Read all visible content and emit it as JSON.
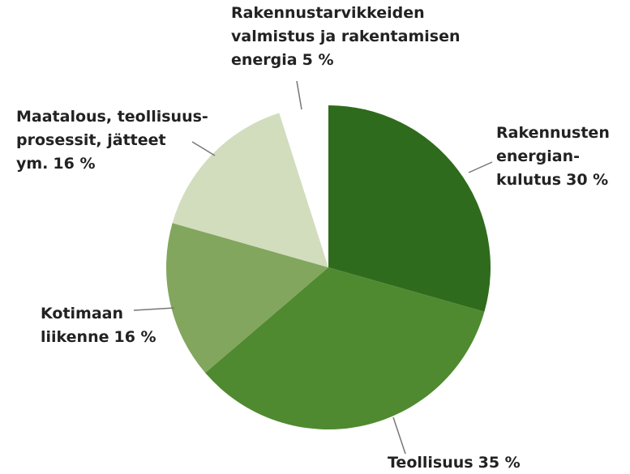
{
  "chart_data": {
    "type": "pie",
    "categories": [
      "Rakennusten\nenergian-\nkulutus",
      "Teollisuus",
      "Kotimaan\nliikenne",
      "Maatalous, teollisuus-\nprosessit, jätteet\nym.",
      "Rakennustarvikkeiden\nvalmistus ja rakentamisen\nenergia"
    ],
    "values": [
      30,
      35,
      16,
      16,
      5
    ],
    "value_labels": [
      "30 %",
      "35 %",
      "16 %",
      "16 %",
      "5 %"
    ],
    "colors": [
      "#2f6b1c",
      "#4f8a30",
      "#82a65e",
      "#d2ddbd",
      "#ffffff"
    ]
  }
}
